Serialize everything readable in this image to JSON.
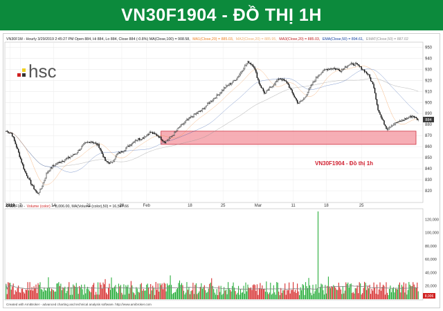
{
  "banner": {
    "title": "VN30F1904 - ĐỒ THỊ 1H",
    "color": "#0c8a3c"
  },
  "price_panel": {
    "info_main": "VN30F1M - Hourly 3/29/2019 2:45:27 PM Open 884, Hi 884, Lo 884, Close 884 (-0.8%) MA(Close,100) = 908.58,",
    "info_ma1": "MA1(Close,20) = 885.03,",
    "info_ma2": "MA2(Close,20) = 885.95,",
    "info_ma3": "MA3(Close,20) = 885.03,",
    "info_ema": "EMA(Close,50) = 894.61,",
    "info_emat": "EMAT(Close,50) = 887.02",
    "logo_text": "hsc",
    "annotation": "VN30F1904 - Đồ thị 1h",
    "last_price_tag": "884"
  },
  "volume_panel": {
    "info_main": "VN30F1M -",
    "info_vol": "Volume (color)",
    "info_rest": "= 8,006.00, MA(Volume (color),50) = 16,597.66",
    "last_volume_tag": "8,006"
  },
  "footer": "Created with AmiBroker - advanced charting and technical analysis software. http://www.amibroker.com",
  "chart_data": [
    {
      "type": "candlestick",
      "y_ticks": [
        820,
        830,
        840,
        850,
        860,
        870,
        880,
        890,
        900,
        910,
        920,
        930,
        940,
        950
      ],
      "ylim": [
        810,
        954
      ],
      "x_ticks": [
        "2019",
        "7",
        "14",
        "21",
        "28",
        "Feb",
        "18",
        "25",
        "Mar",
        "11",
        "18",
        "25"
      ],
      "x_tick_index": [
        4,
        14,
        46,
        80,
        112,
        136,
        178,
        210,
        244,
        278,
        310,
        344
      ],
      "n_bars": 400,
      "close_path_keypoints": [
        [
          0,
          874
        ],
        [
          6,
          872
        ],
        [
          12,
          858
        ],
        [
          20,
          838
        ],
        [
          28,
          825
        ],
        [
          34,
          817
        ],
        [
          38,
          822
        ],
        [
          44,
          836
        ],
        [
          50,
          842
        ],
        [
          58,
          846
        ],
        [
          66,
          849
        ],
        [
          76,
          854
        ],
        [
          84,
          862
        ],
        [
          92,
          865
        ],
        [
          100,
          861
        ],
        [
          108,
          846
        ],
        [
          114,
          845
        ],
        [
          120,
          853
        ],
        [
          126,
          856
        ],
        [
          132,
          860
        ],
        [
          140,
          866
        ],
        [
          148,
          868
        ],
        [
          156,
          873
        ],
        [
          164,
          870
        ],
        [
          172,
          864
        ],
        [
          180,
          870
        ],
        [
          188,
          878
        ],
        [
          196,
          884
        ],
        [
          204,
          889
        ],
        [
          212,
          893
        ],
        [
          220,
          900
        ],
        [
          228,
          906
        ],
        [
          236,
          913
        ],
        [
          244,
          918
        ],
        [
          250,
          922
        ],
        [
          256,
          930
        ],
        [
          262,
          937
        ],
        [
          268,
          933
        ],
        [
          274,
          917
        ],
        [
          280,
          908
        ],
        [
          288,
          915
        ],
        [
          296,
          922
        ],
        [
          304,
          918
        ],
        [
          310,
          908
        ],
        [
          316,
          899
        ],
        [
          322,
          903
        ],
        [
          330,
          915
        ],
        [
          338,
          925
        ],
        [
          346,
          930
        ],
        [
          354,
          931
        ],
        [
          362,
          929
        ],
        [
          370,
          934
        ],
        [
          378,
          935
        ],
        [
          386,
          930
        ],
        [
          392,
          925
        ],
        [
          398,
          914
        ],
        [
          402,
          895
        ],
        [
          406,
          886
        ],
        [
          412,
          876
        ],
        [
          418,
          880
        ],
        [
          424,
          882
        ],
        [
          432,
          885
        ],
        [
          440,
          888
        ],
        [
          446,
          884
        ]
      ],
      "support_zone": [
        862,
        874
      ],
      "support_zone_color": "#f4a0a8",
      "ma_colors": {
        "ma1": "#f08020",
        "ma2": "#f0b070",
        "ma3": "#c02020",
        "ema": "#1040a0",
        "emat": "#909090"
      }
    },
    {
      "type": "bar",
      "series": "Volume (color)",
      "y_ticks": [
        20000,
        40000,
        60000,
        80000,
        100000,
        120000
      ],
      "y_tick_labels": [
        "20,000",
        "40,000",
        "60,000",
        "80,000",
        "100,000",
        "120,000"
      ],
      "ylim": [
        0,
        135000
      ],
      "spike": {
        "bar": 302,
        "value": 132000
      },
      "up_color": "#1faa33",
      "down_color": "#d42020",
      "ma_color": "#808080"
    }
  ]
}
